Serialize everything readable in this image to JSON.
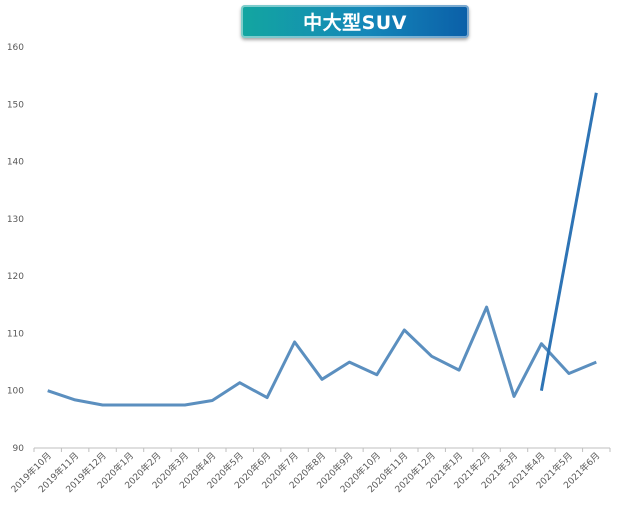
{
  "chart_data": {
    "type": "line",
    "title": "中大型SUV",
    "categories": [
      "2019年10月",
      "2019年11月",
      "2019年12月",
      "2020年1月",
      "2020年2月",
      "2020年3月",
      "2020年4月",
      "2020年5月",
      "2020年6月",
      "2020年7月",
      "2020年8月",
      "2020年9月",
      "2020年10月",
      "2020年11月",
      "2020年12月",
      "2021年1月",
      "2021年2月",
      "2021年3月",
      "2021年4月",
      "2021年5月",
      "2021年6月"
    ],
    "series": [
      {
        "values": [
          100.0,
          98.4,
          97.5,
          97.5,
          97.5,
          97.5,
          98.3,
          101.4,
          98.8,
          108.5,
          102.0,
          105.0,
          102.8,
          110.6,
          106.0,
          103.6,
          114.6,
          99.0,
          108.2,
          103.0,
          105.0
        ],
        "color": "#5b8fbf"
      },
      {
        "values": [
          null,
          null,
          null,
          null,
          null,
          null,
          null,
          null,
          null,
          null,
          null,
          null,
          null,
          null,
          null,
          null,
          null,
          null,
          100.0,
          null,
          152.0
        ],
        "color": "#2e74b5"
      }
    ],
    "ylim": [
      90,
      160
    ],
    "yticks": [
      90,
      100,
      110,
      120,
      130,
      140,
      150,
      160
    ],
    "grid": false,
    "legend": "none"
  }
}
